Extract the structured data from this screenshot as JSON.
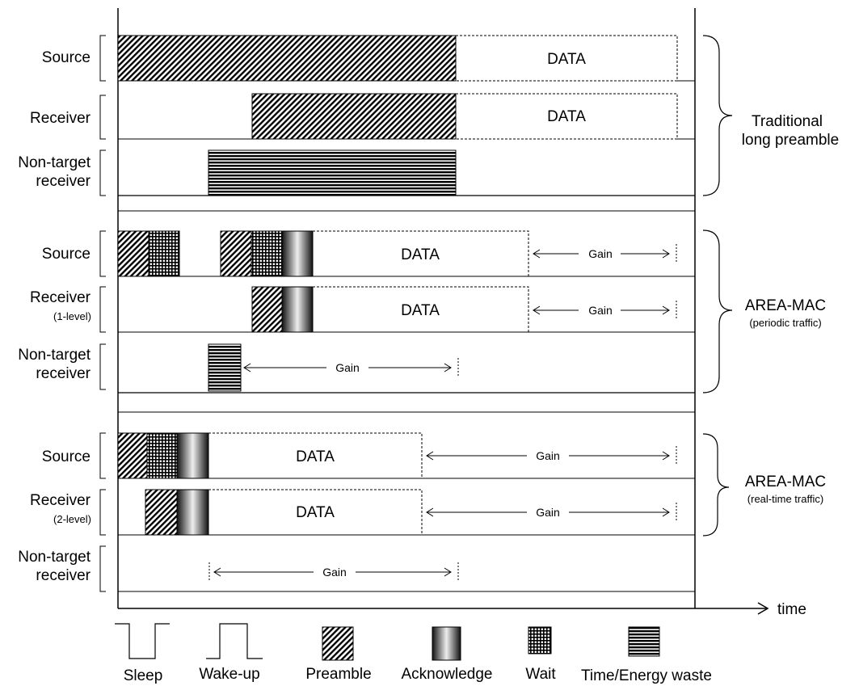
{
  "rows": {
    "traditional": {
      "source": "Source",
      "receiver": "Receiver",
      "non_target_line1": "Non-target",
      "non_target_line2": "receiver"
    },
    "periodic": {
      "source": "Source",
      "receiver": "Receiver",
      "receiver_level": "(1-level)",
      "non_target_line1": "Non-target",
      "non_target_line2": "receiver"
    },
    "realtime": {
      "source": "Source",
      "receiver": "Receiver",
      "receiver_level": "(2-level)",
      "non_target_line1": "Non-target",
      "non_target_line2": "receiver"
    }
  },
  "groups": {
    "traditional_line1": "Traditional",
    "traditional_line2": "long preamble",
    "periodic_line1": "AREA-MAC",
    "periodic_line2": "(periodic traffic)",
    "realtime_line1": "AREA-MAC",
    "realtime_line2": "(real-time traffic)"
  },
  "data_label": "DATA",
  "gain_label": "Gain",
  "time_label": "time",
  "legend": {
    "sleep": "Sleep",
    "wakeup": "Wake-up",
    "preamble": "Preamble",
    "acknowledge": "Acknowledge",
    "wait": "Wait",
    "waste": "Time/Energy waste"
  }
}
